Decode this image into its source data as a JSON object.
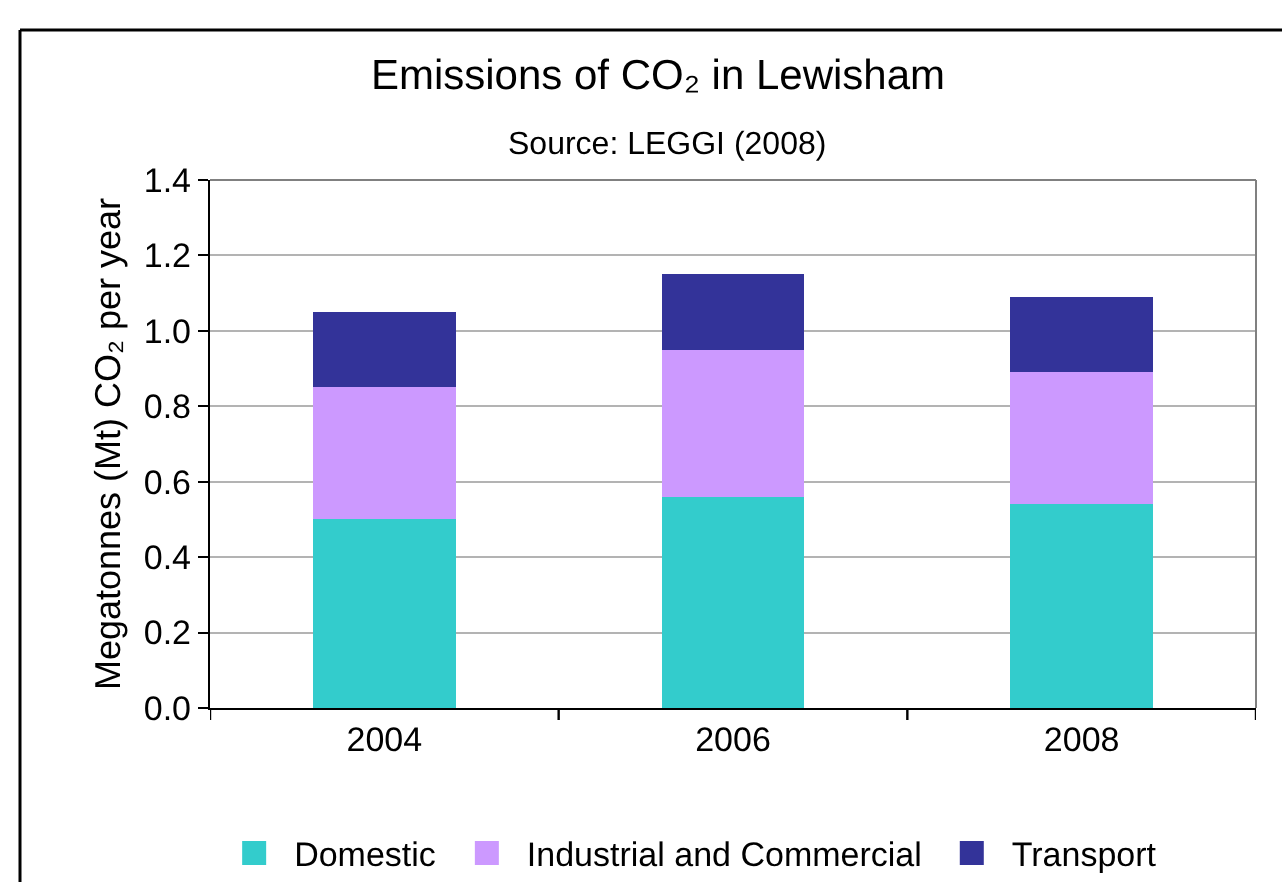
{
  "chart_data": {
    "type": "bar",
    "title": "Emissions of CO₂ in Lewisham",
    "annotations": [
      "Source: LEGGI (2008)"
    ],
    "ylabel": "Megatonnes (Mt) CO₂ per year",
    "categories": [
      "2004",
      "2006",
      "2008"
    ],
    "series": [
      {
        "name": "Domestic",
        "color": "#33cccc",
        "values": [
          0.5,
          0.56,
          0.54
        ]
      },
      {
        "name": "Industrial and Commercial",
        "color": "#cc99ff",
        "values": [
          0.35,
          0.39,
          0.35
        ]
      },
      {
        "name": "Transport",
        "color": "#333399",
        "values": [
          0.2,
          0.2,
          0.2
        ]
      }
    ],
    "stacked": true,
    "ylim": [
      0,
      1.4
    ],
    "yticks": [
      {
        "value": 0,
        "label": "0.0"
      },
      0.2,
      0.4,
      0.6,
      0.8,
      {
        "value": 1,
        "label": "1.0"
      },
      1.2,
      1.4
    ],
    "grid": "y",
    "legend": "bottom"
  }
}
